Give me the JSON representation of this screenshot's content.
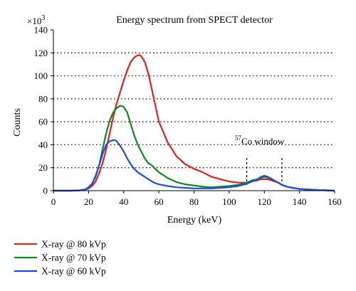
{
  "chart_data": {
    "type": "line",
    "title": "Energy spectrum from SPECT detector",
    "xlabel": "Energy (keV)",
    "ylabel": "Counts",
    "y_multiplier_label": "×10",
    "y_multiplier_exp": "3",
    "xlim": [
      0,
      160
    ],
    "ylim": [
      0,
      140
    ],
    "x_ticks": [
      0,
      20,
      40,
      60,
      80,
      100,
      120,
      140,
      160
    ],
    "y_ticks": [
      0,
      20,
      40,
      60,
      80,
      100,
      120,
      140
    ],
    "grid": "horizontal dotted",
    "legend_position": "below",
    "annotation": {
      "superscript": "57",
      "text": "Co window",
      "window_keV": [
        110,
        130
      ]
    },
    "x": [
      0,
      10,
      15,
      18,
      20,
      22,
      24,
      26,
      28,
      30,
      32,
      34,
      35,
      36,
      38,
      40,
      42,
      44,
      46,
      48,
      49,
      50,
      52,
      54,
      56,
      58,
      60,
      65,
      70,
      75,
      80,
      85,
      90,
      95,
      100,
      105,
      110,
      113,
      116,
      118,
      120,
      122,
      124,
      126,
      128,
      130,
      133,
      136,
      140,
      145,
      150,
      155,
      160
    ],
    "series": [
      {
        "name": "X-ray @ 80 kVp",
        "color": "#e02020",
        "values": [
          0,
          0,
          0.3,
          1,
          2,
          4,
          8,
          15,
          24,
          36,
          50,
          64,
          70,
          76,
          86,
          96,
          105,
          112,
          116,
          118,
          118,
          117,
          112,
          102,
          88,
          74,
          60,
          42,
          30,
          23,
          19,
          16,
          12,
          10,
          8,
          7,
          7,
          8,
          9,
          10,
          10,
          10,
          9,
          8,
          7,
          5,
          3.5,
          2.5,
          1.5,
          1,
          0.6,
          0.3,
          0
        ]
      },
      {
        "name": "X-ray @ 70 kVp",
        "color": "#0a8a1a",
        "values": [
          0,
          0,
          0.3,
          1,
          3,
          6,
          12,
          22,
          36,
          50,
          61,
          68,
          70,
          72,
          74,
          73,
          68,
          58,
          48,
          40,
          37,
          34,
          28,
          24,
          22,
          19,
          16,
          11,
          7.5,
          5.5,
          4.5,
          3.5,
          3,
          3.5,
          4,
          5,
          7,
          9,
          10,
          11,
          12,
          11.5,
          10,
          8.5,
          7,
          5,
          3.5,
          2.5,
          1.5,
          1,
          0.6,
          0.3,
          0
        ]
      },
      {
        "name": "X-ray @ 60 kVp",
        "color": "#1a4de8",
        "values": [
          0,
          0,
          0.3,
          1,
          2.5,
          6,
          13,
          22,
          32,
          40,
          43,
          44,
          44,
          43,
          39,
          34,
          28,
          23,
          19,
          16,
          15,
          14,
          12,
          10,
          8,
          6.5,
          5.5,
          4,
          3,
          2.5,
          2,
          2,
          2,
          2.5,
          3,
          4,
          6,
          8,
          10,
          12,
          13,
          12,
          10.5,
          8.5,
          7,
          5,
          3.5,
          2.5,
          1.5,
          1,
          0.6,
          0.3,
          0
        ]
      }
    ]
  }
}
